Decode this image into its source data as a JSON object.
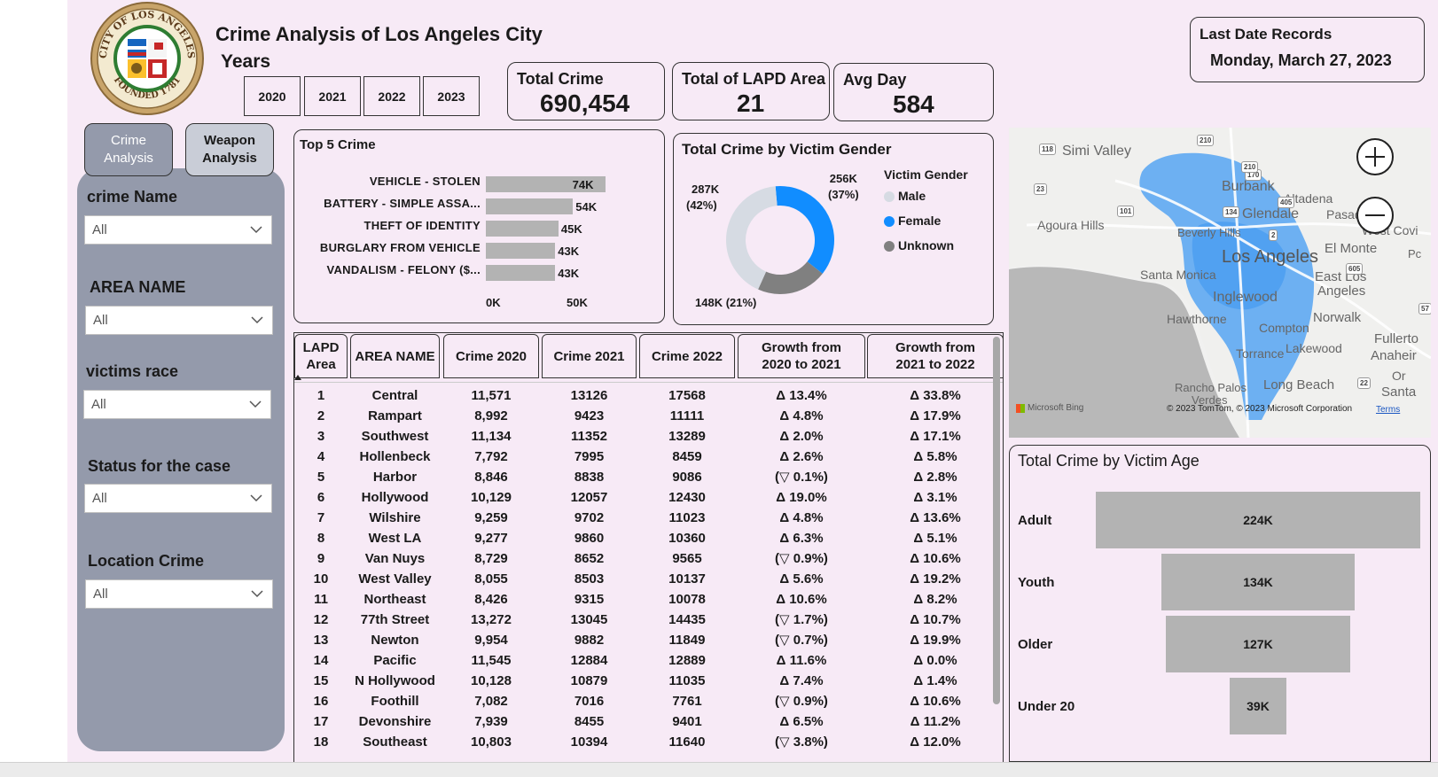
{
  "header": {
    "title": "Crime Analysis of Los Angeles City",
    "years_label": "Years",
    "years": [
      "2020",
      "2021",
      "2022",
      "2023"
    ],
    "seal_text": "CITY OF LOS ANGELES · FOUNDED 1781"
  },
  "kpis": {
    "total_crime": {
      "label": "Total Crime",
      "value": "690,454"
    },
    "lapd_area": {
      "label": "Total of LAPD Area",
      "value": "21"
    },
    "avg_day": {
      "label": "Avg Day",
      "value": "584"
    },
    "last_date": {
      "label": "Last Date Records",
      "value": "Monday, March 27, 2023"
    }
  },
  "tabs": {
    "crime": "Crime Analysis",
    "weapon": "Weapon Analysis"
  },
  "filters": [
    {
      "label": "crime Name",
      "value": "All"
    },
    {
      "label": "AREA NAME",
      "value": "All"
    },
    {
      "label": "victims race",
      "value": "All"
    },
    {
      "label": "Status for the case",
      "value": "All"
    },
    {
      "label": "Location Crime",
      "value": "All"
    }
  ],
  "top5": {
    "title": "Top 5 Crime",
    "items": [
      {
        "name": "VEHICLE - STOLEN",
        "value": 74,
        "label": "74K"
      },
      {
        "name": "BATTERY - SIMPLE ASSA...",
        "value": 54,
        "label": "54K"
      },
      {
        "name": "THEFT OF IDENTITY",
        "value": 45,
        "label": "45K"
      },
      {
        "name": "BURGLARY FROM VEHICLE",
        "value": 43,
        "label": "43K"
      },
      {
        "name": "VANDALISM - FELONY ($...",
        "value": 43,
        "label": "43K"
      }
    ],
    "ticks": [
      "0K",
      "50K"
    ]
  },
  "gender": {
    "title": "Total Crime by Victim Gender",
    "legend_title": "Victim Gender",
    "slices": [
      {
        "name": "Male",
        "value": 42,
        "label_k": "287K",
        "label_pct": "(42%)",
        "color": "#d6dbe3"
      },
      {
        "name": "Female",
        "value": 37,
        "label_k": "256K",
        "label_pct": "(37%)",
        "color": "#118dff"
      },
      {
        "name": "Unknown",
        "value": 21,
        "label_k": "148K (21%)",
        "label_pct": "",
        "color": "#808080"
      }
    ]
  },
  "table": {
    "columns": [
      "LAPD Area",
      "AREA NAME",
      "Crime 2020",
      "Crime 2021",
      "Crime 2022",
      "Growth from 2020 to 2021",
      "Growth from 2021 to 2022"
    ],
    "rows": [
      [
        "1",
        "Central",
        "11,571",
        "13126",
        "17568",
        "Δ 13.4%",
        "Δ 33.8%"
      ],
      [
        "2",
        "Rampart",
        "8,992",
        "9423",
        "11111",
        "Δ 4.8%",
        "Δ 17.9%"
      ],
      [
        "3",
        "Southwest",
        "11,134",
        "11352",
        "13289",
        "Δ 2.0%",
        "Δ 17.1%"
      ],
      [
        "4",
        "Hollenbeck",
        "7,792",
        "7995",
        "8459",
        "Δ 2.6%",
        "Δ 5.8%"
      ],
      [
        "5",
        "Harbor",
        "8,846",
        "8838",
        "9086",
        "(▽ 0.1%)",
        "Δ 2.8%"
      ],
      [
        "6",
        "Hollywood",
        "10,129",
        "12057",
        "12430",
        "Δ 19.0%",
        "Δ 3.1%"
      ],
      [
        "7",
        "Wilshire",
        "9,259",
        "9702",
        "11023",
        "Δ 4.8%",
        "Δ 13.6%"
      ],
      [
        "8",
        "West LA",
        "9,277",
        "9860",
        "10360",
        "Δ 6.3%",
        "Δ 5.1%"
      ],
      [
        "9",
        "Van Nuys",
        "8,729",
        "8652",
        "9565",
        "(▽ 0.9%)",
        "Δ 10.6%"
      ],
      [
        "10",
        "West Valley",
        "8,055",
        "8503",
        "10137",
        "Δ 5.6%",
        "Δ 19.2%"
      ],
      [
        "11",
        "Northeast",
        "8,426",
        "9315",
        "10078",
        "Δ 10.6%",
        "Δ 8.2%"
      ],
      [
        "12",
        "77th Street",
        "13,272",
        "13045",
        "14435",
        "(▽ 1.7%)",
        "Δ 10.7%"
      ],
      [
        "13",
        "Newton",
        "9,954",
        "9882",
        "11849",
        "(▽ 0.7%)",
        "Δ 19.9%"
      ],
      [
        "14",
        "Pacific",
        "11,545",
        "12884",
        "12889",
        "Δ 11.6%",
        "Δ 0.0%"
      ],
      [
        "15",
        "N Hollywood",
        "10,128",
        "10879",
        "11035",
        "Δ 7.4%",
        "Δ 1.4%"
      ],
      [
        "16",
        "Foothill",
        "7,082",
        "7016",
        "7761",
        "(▽ 0.9%)",
        "Δ 10.6%"
      ],
      [
        "17",
        "Devonshire",
        "7,939",
        "8455",
        "9401",
        "Δ 6.5%",
        "Δ 11.2%"
      ],
      [
        "18",
        "Southeast",
        "10,803",
        "10394",
        "11640",
        "(▽ 3.8%)",
        "Δ 12.0%"
      ]
    ]
  },
  "map": {
    "labels": [
      "Simi Valley",
      "Burbank",
      "Altadena",
      "Glendale",
      "Pasad",
      "Agoura Hills",
      "Beverly Hills",
      "West Covi",
      "El Monte",
      "Los Angeles",
      "Santa Monica",
      "East Los",
      "Angeles",
      "Inglewood",
      "Hawthorne",
      "Norwalk",
      "Compton",
      "Fullerto",
      "Lakewood",
      "Anaheir",
      "Torrance",
      "Or",
      "Rancho Palos",
      "Verdes",
      "Long Beach",
      "Santa",
      "Pc"
    ],
    "shields": [
      "118",
      "23",
      "101",
      "210",
      "170",
      "210",
      "405",
      "134",
      "2",
      "605",
      "22",
      "57"
    ],
    "bing": "Microsoft Bing",
    "copyright": "© 2023 TomTom, © 2023 Microsoft Corporation",
    "terms": "Terms"
  },
  "age": {
    "title": "Total Crime by Victim Age",
    "items": [
      {
        "name": "Adult",
        "value": 224,
        "label": "224K"
      },
      {
        "name": "Youth",
        "value": 134,
        "label": "134K"
      },
      {
        "name": "Older",
        "value": 127,
        "label": "127K"
      },
      {
        "name": "Under 20",
        "value": 39,
        "label": "39K"
      }
    ]
  }
}
